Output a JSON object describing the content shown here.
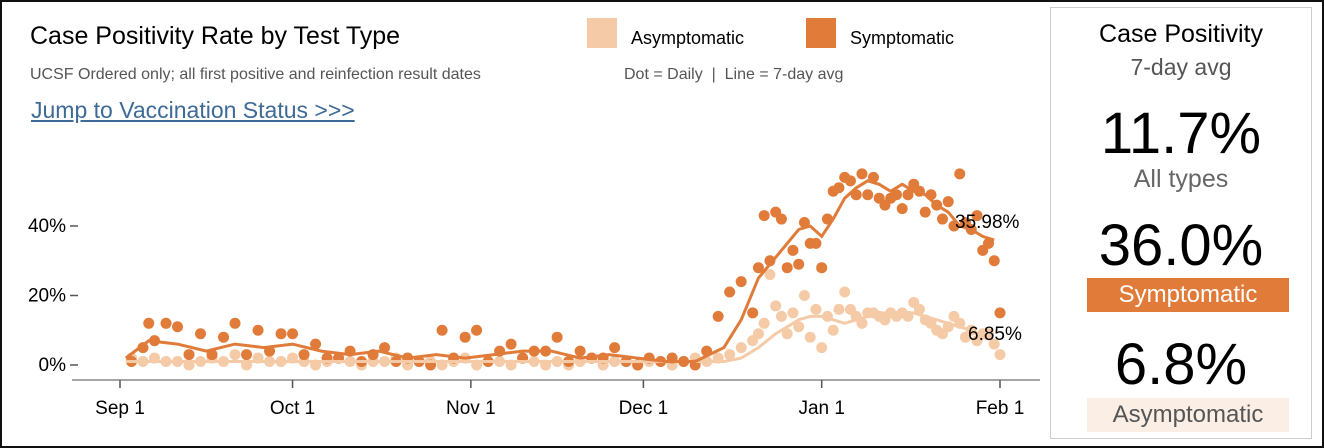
{
  "header": {
    "title": "Case Positivity Rate by Test Type",
    "subtitle": "UCSF Ordered only; all first positive and reinfection result dates",
    "legend_note": "Dot = Daily  |  Line = 7-day avg",
    "jump_link": "Jump to Vaccination Status >>>"
  },
  "legend": [
    {
      "label": "Asymptomatic",
      "color": "#f5cba7"
    },
    {
      "label": "Symptomatic",
      "color": "#e07b39"
    }
  ],
  "end_labels": {
    "symptomatic": "35.98%",
    "asymptomatic": "6.85%"
  },
  "summary_panel": {
    "title": "Case Positivity",
    "subtitle": "7-day avg",
    "all_value": "11.7%",
    "all_label": "All types",
    "symptomatic_value": "36.0%",
    "symptomatic_label": "Symptomatic",
    "asymptomatic_value": "6.8%",
    "asymptomatic_label": "Asymptomatic"
  },
  "colors": {
    "symptomatic": "#e07b39",
    "asymptomatic": "#f5cba7",
    "link": "#3d6a96",
    "badge_text_asym": "#555555",
    "badge_bg_asym": "#fbeee4"
  },
  "chart_data": {
    "type": "line",
    "title": "Case Positivity Rate by Test Type",
    "xlabel": "",
    "ylabel": "",
    "x_ticks": [
      "Sep 1",
      "Oct 1",
      "Nov 1",
      "Dec 1",
      "Jan 1",
      "Feb 1"
    ],
    "x_tick_days": [
      0,
      30,
      61,
      91,
      122,
      153
    ],
    "y_ticks": [
      "0%",
      "20%",
      "40%"
    ],
    "y_tick_values": [
      0,
      20,
      40
    ],
    "ylim": [
      0,
      60
    ],
    "xlim": [
      -3,
      154
    ],
    "x_unit": "days since Sep 1",
    "grid": false,
    "legend_position": "top",
    "series": [
      {
        "name": "Symptomatic",
        "color": "#e07b39",
        "avg_x": [
          1,
          5,
          10,
          15,
          20,
          25,
          30,
          35,
          40,
          45,
          50,
          55,
          60,
          65,
          70,
          75,
          80,
          85,
          90,
          95,
          100,
          105,
          108,
          111,
          114,
          116,
          118,
          120,
          122,
          124,
          126,
          128,
          130,
          132,
          134,
          136,
          138,
          140,
          142,
          144,
          146,
          148,
          150,
          152
        ],
        "avg_y": [
          2,
          7,
          6,
          4,
          6,
          5,
          6,
          4,
          3,
          4,
          2,
          3,
          2,
          3,
          4,
          4,
          2,
          3,
          2,
          1,
          1,
          5,
          13,
          25,
          31,
          35,
          39,
          40,
          37,
          42,
          48,
          51,
          53,
          52,
          50,
          52,
          50,
          49,
          46,
          44,
          40,
          39,
          37,
          35.98
        ],
        "daily_x": [
          2,
          4,
          5,
          6,
          8,
          10,
          12,
          14,
          16,
          18,
          20,
          22,
          24,
          26,
          28,
          30,
          32,
          34,
          36,
          38,
          40,
          42,
          44,
          46,
          48,
          50,
          52,
          54,
          56,
          58,
          60,
          62,
          64,
          66,
          68,
          70,
          72,
          74,
          76,
          78,
          80,
          82,
          84,
          86,
          88,
          90,
          92,
          94,
          96,
          98,
          100,
          102,
          104,
          106,
          108,
          110,
          111,
          112,
          113,
          114,
          115,
          116,
          117,
          118,
          119,
          120,
          121,
          122,
          123,
          124,
          125,
          126,
          127,
          128,
          129,
          130,
          131,
          132,
          133,
          134,
          135,
          136,
          137,
          138,
          139,
          140,
          141,
          142,
          143,
          144,
          145,
          146,
          147,
          148,
          149,
          150,
          151,
          152,
          153
        ],
        "daily_y": [
          1,
          5,
          12,
          7,
          12,
          11,
          3,
          9,
          3,
          8,
          12,
          3,
          10,
          4,
          9,
          9,
          3,
          6,
          2,
          2,
          4,
          1,
          3,
          5,
          1,
          2,
          1,
          0,
          10,
          2,
          8,
          10,
          1,
          4,
          6,
          2,
          4,
          4,
          8,
          1,
          4,
          2,
          2,
          5,
          1,
          0,
          2,
          1,
          2,
          1,
          0,
          4,
          14,
          21,
          24,
          15,
          28,
          43,
          30,
          44,
          42,
          28,
          33,
          29,
          41,
          35,
          35,
          28,
          42,
          50,
          51,
          54,
          53,
          49,
          55,
          49,
          54,
          48,
          46,
          48,
          49,
          45,
          49,
          52,
          50,
          44,
          49,
          46,
          42,
          47,
          40,
          55,
          41,
          39,
          43,
          33,
          35,
          30,
          15
        ]
      },
      {
        "name": "Asymptomatic",
        "color": "#f5cba7",
        "avg_x": [
          1,
          10,
          20,
          30,
          40,
          50,
          60,
          70,
          80,
          90,
          100,
          105,
          108,
          111,
          114,
          116,
          118,
          120,
          122,
          124,
          126,
          128,
          130,
          132,
          134,
          136,
          138,
          140,
          142,
          144,
          146,
          148,
          150,
          152
        ],
        "avg_y": [
          1,
          1,
          1,
          1,
          1,
          1,
          1,
          1,
          1,
          1,
          1,
          1,
          2,
          5,
          9,
          11,
          13,
          14,
          14,
          13,
          12,
          13,
          14,
          15,
          15,
          15,
          15,
          14,
          13,
          12,
          11,
          10,
          8,
          6.85
        ],
        "daily_x": [
          2,
          4,
          6,
          8,
          10,
          12,
          14,
          16,
          18,
          20,
          22,
          24,
          26,
          28,
          30,
          32,
          34,
          36,
          38,
          40,
          42,
          44,
          46,
          48,
          50,
          52,
          54,
          56,
          58,
          60,
          62,
          64,
          66,
          68,
          70,
          72,
          74,
          76,
          78,
          80,
          82,
          84,
          86,
          88,
          90,
          92,
          94,
          96,
          98,
          100,
          102,
          104,
          106,
          108,
          110,
          111,
          112,
          113,
          114,
          115,
          116,
          117,
          118,
          119,
          120,
          121,
          122,
          123,
          124,
          125,
          126,
          127,
          128,
          129,
          130,
          131,
          132,
          133,
          134,
          135,
          136,
          137,
          138,
          139,
          140,
          141,
          142,
          143,
          144,
          145,
          146,
          147,
          148,
          149,
          150,
          151,
          152,
          153
        ],
        "daily_y": [
          2,
          1,
          2,
          1,
          1,
          0,
          1,
          2,
          1,
          3,
          0,
          2,
          1,
          1,
          2,
          1,
          0,
          1,
          2,
          1,
          0,
          1,
          1,
          2,
          0,
          1,
          1,
          0,
          1,
          2,
          0,
          1,
          1,
          0,
          2,
          1,
          0,
          1,
          0,
          1,
          2,
          0,
          1,
          1,
          0,
          1,
          1,
          0,
          1,
          2,
          1,
          2,
          3,
          5,
          7,
          9,
          12,
          26,
          17,
          14,
          9,
          15,
          11,
          20,
          8,
          16,
          5,
          14,
          10,
          16,
          21,
          16,
          14,
          12,
          15,
          15,
          14,
          13,
          15,
          14,
          15,
          14,
          18,
          16,
          13,
          12,
          10,
          9,
          11,
          14,
          12,
          8,
          10,
          7,
          9,
          9,
          6,
          3
        ]
      }
    ]
  }
}
